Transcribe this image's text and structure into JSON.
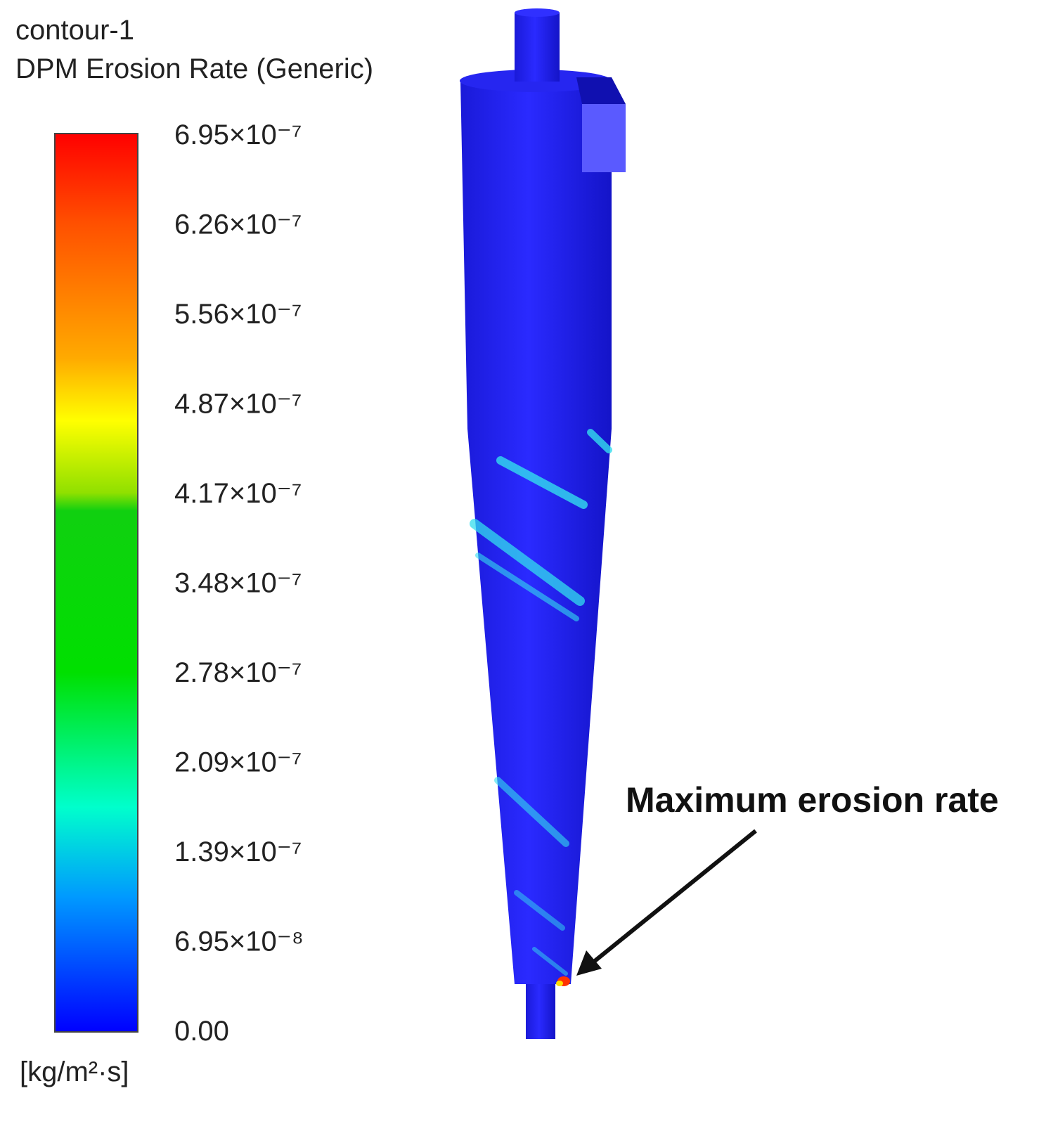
{
  "legend": {
    "title": "contour-1",
    "variable": "DPM Erosion Rate (Generic)",
    "labels": [
      "6.95×10⁻⁷",
      "6.26×10⁻⁷",
      "5.56×10⁻⁷",
      "4.87×10⁻⁷",
      "4.17×10⁻⁷",
      "3.48×10⁻⁷",
      "2.78×10⁻⁷",
      "2.09×10⁻⁷",
      "1.39×10⁻⁷",
      "6.95×10⁻⁸",
      "0.00"
    ],
    "unit": "[kg/m²·s]"
  },
  "annotation": {
    "text": "Maximum erosion rate"
  }
}
